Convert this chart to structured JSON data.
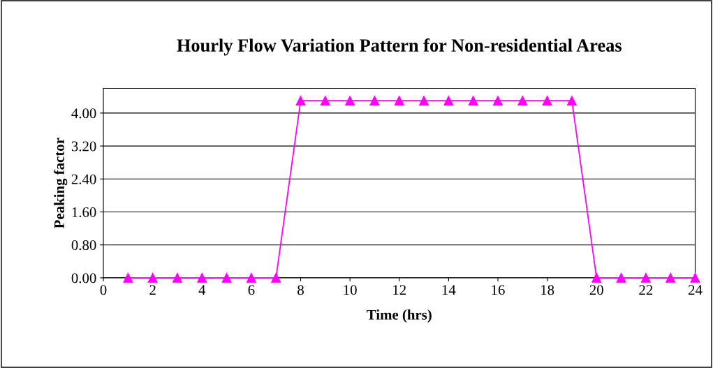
{
  "chart_data": {
    "type": "line",
    "title": "Hourly Flow Variation Pattern for Non-residential Areas",
    "xlabel": "Time (hrs)",
    "ylabel": "Peaking factor",
    "x": [
      1,
      2,
      3,
      4,
      5,
      6,
      7,
      8,
      9,
      10,
      11,
      12,
      13,
      14,
      15,
      16,
      17,
      18,
      19,
      20,
      21,
      22,
      23,
      24
    ],
    "series": [
      {
        "color": "#ff00ff",
        "values": [
          0,
          0,
          0,
          0,
          0,
          0,
          0,
          4.3,
          4.3,
          4.3,
          4.3,
          4.3,
          4.3,
          4.3,
          4.3,
          4.3,
          4.3,
          4.3,
          4.3,
          0,
          0,
          0,
          0,
          0
        ]
      }
    ],
    "xlim": [
      0,
      24
    ],
    "xticks": [
      0,
      2,
      4,
      6,
      8,
      10,
      12,
      14,
      16,
      18,
      20,
      22,
      24
    ],
    "ylim": [
      0,
      4.6
    ],
    "yticks": [
      {
        "value": 0,
        "label": "0.00"
      },
      {
        "value": 0.8,
        "label": "0.80"
      },
      {
        "value": 1.6,
        "label": "1.60"
      },
      {
        "value": 2.4,
        "label": "2.40"
      },
      {
        "value": 3.2,
        "label": "3.20"
      },
      {
        "value": 4.0,
        "label": "4.00"
      }
    ],
    "grid": "y",
    "marker": "triangle",
    "line_style": "solid",
    "legend": false
  }
}
